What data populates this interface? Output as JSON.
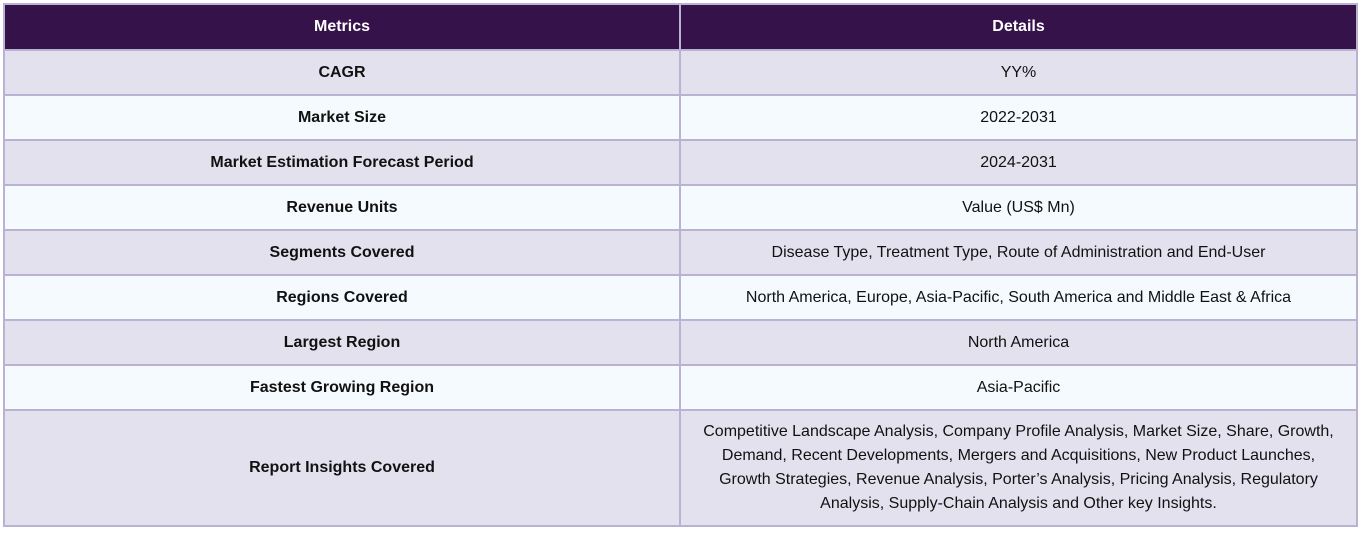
{
  "table": {
    "headers": [
      "Metrics",
      "Details"
    ],
    "rows": [
      {
        "metric": "CAGR",
        "detail": "YY%"
      },
      {
        "metric": "Market Size",
        "detail": "2022-2031"
      },
      {
        "metric": "Market Estimation Forecast Period",
        "detail": "2024-2031"
      },
      {
        "metric": "Revenue Units",
        "detail": "Value (US$ Mn)"
      },
      {
        "metric": "Segments Covered",
        "detail": "Disease Type, Treatment Type, Route of Administration and End-User"
      },
      {
        "metric": "Regions Covered",
        "detail": "North America, Europe, Asia-Pacific, South America and Middle East & Africa"
      },
      {
        "metric": "Largest Region",
        "detail": "North America"
      },
      {
        "metric": "Fastest Growing Region",
        "detail": "Asia-Pacific"
      },
      {
        "metric": "Report Insights Covered",
        "detail": "Competitive Landscape Analysis, Company Profile Analysis, Market Size, Share, Growth, Demand, Recent Developments, Mergers and Acquisitions, New Product Launches, Growth Strategies, Revenue Analysis, Porter’s Analysis, Pricing Analysis, Regulatory Analysis, Supply-Chain Analysis and Other key Insights."
      }
    ]
  },
  "colors": {
    "header_bg": "#35124a",
    "header_text": "#ffffff",
    "row_odd_bg": "#e4e1ee",
    "row_even_bg": "#f4fafd",
    "border": "#b9b2d2"
  }
}
